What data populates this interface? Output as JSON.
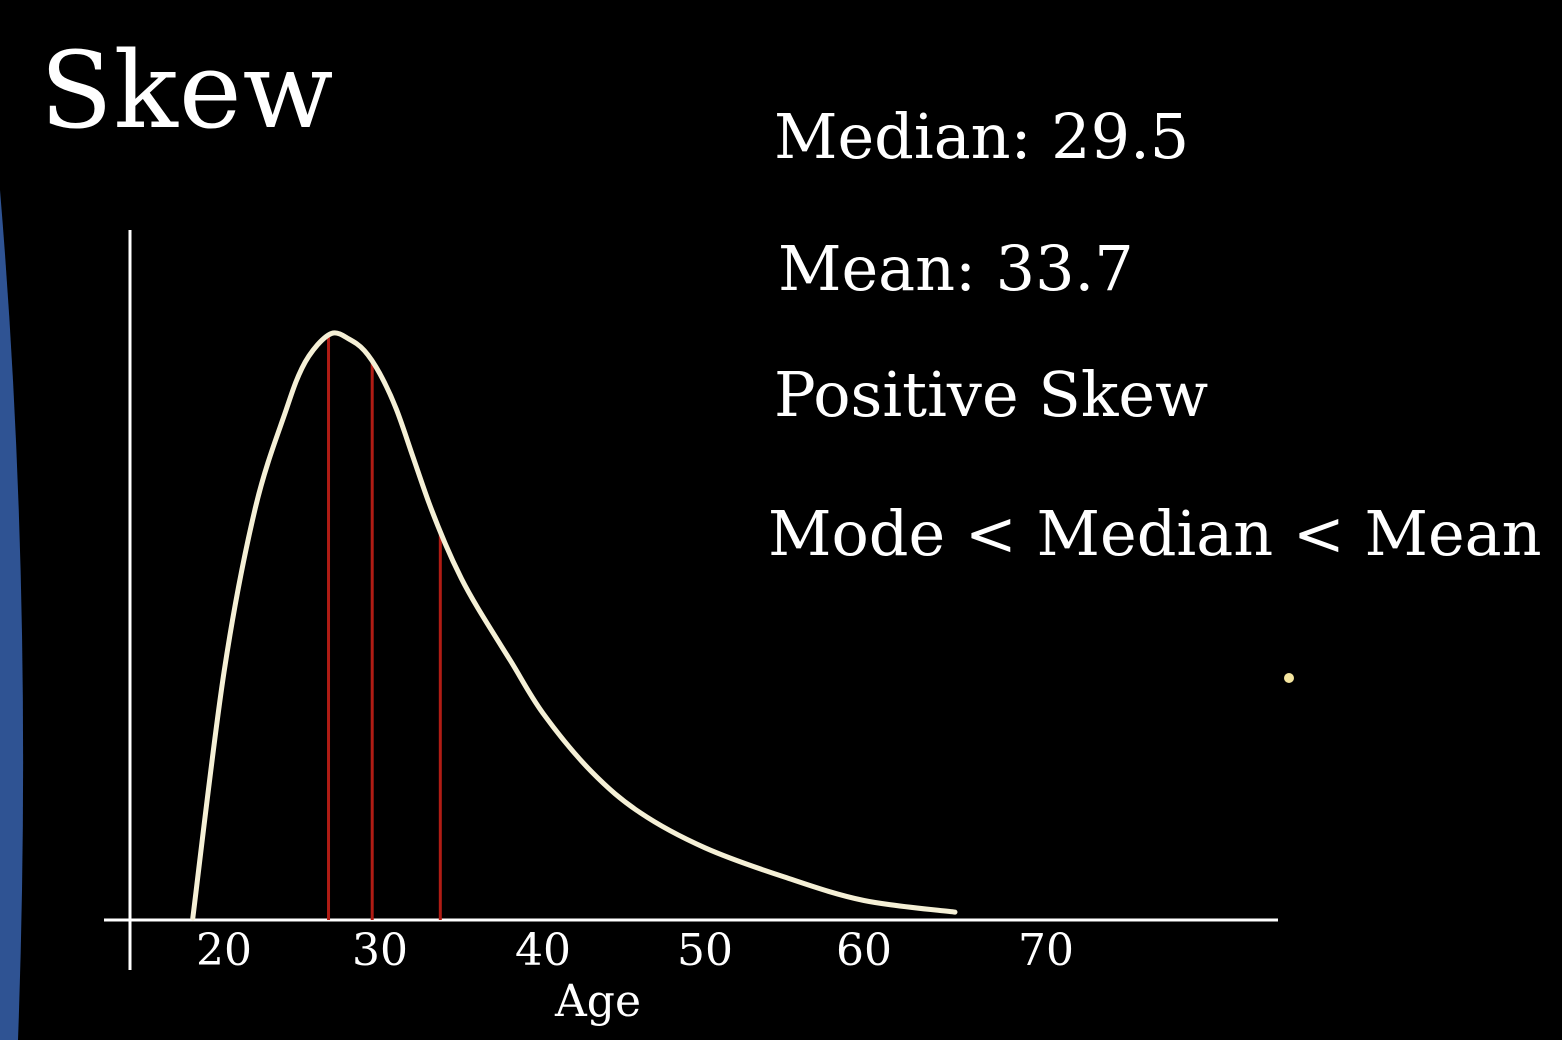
{
  "slide": {
    "title": "Skew",
    "median_text": "Median: 29.5",
    "mean_text": "Mean: 33.7",
    "skew_text": "Positive Skew",
    "order_text": "Mode < Median < Mean"
  },
  "colors": {
    "background": "#000000",
    "text": "#ffffff",
    "curve": "#f5f0d6",
    "markers": "#b01c14",
    "accent_band": "#2f5393",
    "dot": "#f5e6a0"
  },
  "chart_data": {
    "type": "line",
    "title": "",
    "xlabel": "Age",
    "ylabel": "",
    "x_ticks": [
      "20",
      "30",
      "40",
      "50",
      "60",
      "70"
    ],
    "xlim": [
      15,
      80
    ],
    "grid": false,
    "legend": "none",
    "series": [
      {
        "x": [
          18,
          20,
          22,
          24,
          25,
          26,
          27,
          28,
          29,
          30,
          31,
          32,
          33,
          34,
          35,
          36,
          38,
          40,
          43,
          46,
          50,
          55,
          60,
          65
        ],
        "values": [
          0.0,
          0.42,
          0.7,
          0.87,
          0.94,
          0.98,
          1.0,
          0.99,
          0.97,
          0.93,
          0.87,
          0.79,
          0.71,
          0.64,
          0.58,
          0.53,
          0.44,
          0.35,
          0.25,
          0.18,
          0.12,
          0.07,
          0.03,
          0.01
        ]
      }
    ],
    "markers": [
      {
        "label": "Mode",
        "x": 26.7
      },
      {
        "label": "Median",
        "x": 29.5
      },
      {
        "label": "Mean",
        "x": 33.7
      }
    ]
  }
}
